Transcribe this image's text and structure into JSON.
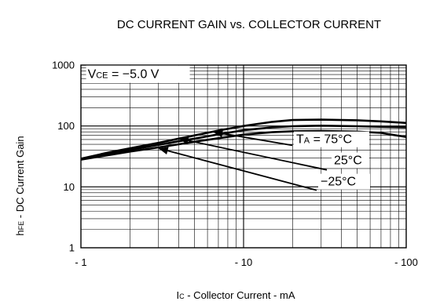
{
  "chart_data": {
    "type": "line",
    "title": "DC CURRENT GAIN vs. COLLECTOR CURRENT",
    "xlabel": {
      "main": "I",
      "sub": "C",
      "rest": " - Collector Current - mA"
    },
    "ylabel": {
      "main": "h",
      "sub": "FE",
      "rest": " - DC Current Gain"
    },
    "x_scale": "log",
    "y_scale": "log",
    "xlim": [
      1,
      100
    ],
    "ylim": [
      1,
      1000
    ],
    "x_ticks": [
      {
        "value": 1,
        "label": "- 1"
      },
      {
        "value": 10,
        "label": "- 10"
      },
      {
        "value": 100,
        "label": "- 100"
      }
    ],
    "y_ticks": [
      {
        "value": 1,
        "label": "1"
      },
      {
        "value": 10,
        "label": "10"
      },
      {
        "value": 100,
        "label": "100"
      },
      {
        "value": 1000,
        "label": "1000"
      }
    ],
    "grid": true,
    "condition_label": {
      "main": "V",
      "sub": "CE",
      "rest": " = −5.0 V"
    },
    "series": [
      {
        "x": [
          1,
          1.5,
          2,
          3,
          4,
          5,
          7,
          10,
          15,
          20,
          30,
          50,
          70,
          100
        ],
        "y": [
          29,
          37,
          43,
          53,
          62,
          70,
          84,
          100,
          117,
          125,
          127,
          124,
          119,
          112
        ]
      },
      {
        "x": [
          1,
          1.5,
          2,
          3,
          4,
          5,
          7,
          10,
          15,
          20,
          30,
          50,
          70,
          100
        ],
        "y": [
          28.5,
          35,
          40.5,
          49,
          56,
          62,
          73,
          85,
          95,
          99,
          101,
          99,
          97,
          95
        ]
      },
      {
        "x": [
          1,
          1.5,
          2,
          3,
          4,
          5,
          7,
          10,
          15,
          20,
          30,
          50,
          70,
          100
        ],
        "y": [
          28,
          33.5,
          38,
          44.5,
          50,
          55,
          63,
          72,
          79,
          82,
          83,
          81,
          77,
          66
        ]
      }
    ],
    "annotations": [
      {
        "main": "T",
        "sub": "A",
        "rest": " = 75°C",
        "series": 0
      },
      {
        "main": "",
        "sub": "",
        "rest": "25°C",
        "series": 1
      },
      {
        "main": "",
        "sub": "",
        "rest": "−25°C",
        "series": 2
      }
    ]
  }
}
